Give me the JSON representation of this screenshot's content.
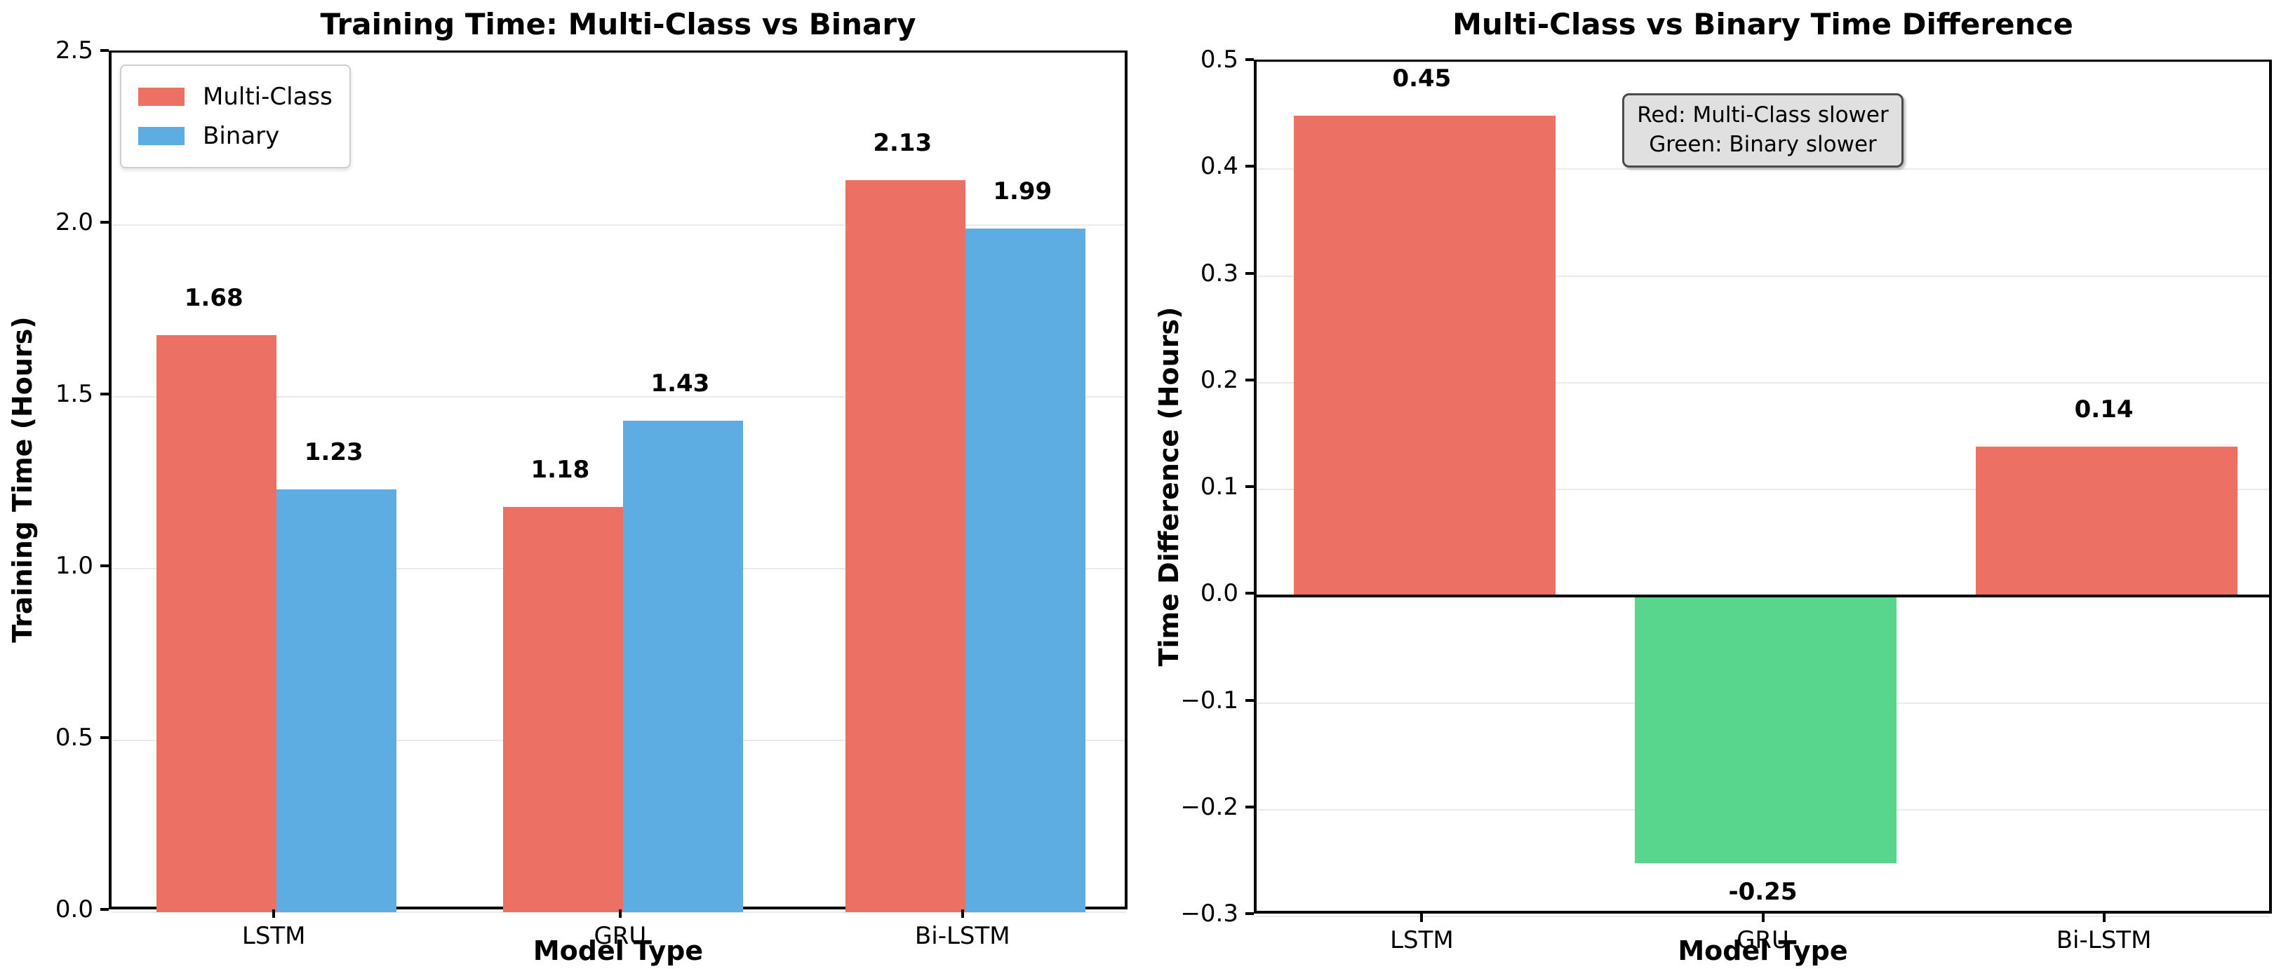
{
  "figure": {
    "background": "#ffffff"
  },
  "colors": {
    "multi_class": "#EC7063",
    "binary": "#5DADE2",
    "binary_slower": "#58D68D",
    "gridline": "#ebebeb",
    "annotation_bg": "#e0e0e0",
    "annotation_border": "#4b4b4b"
  },
  "chart_data": [
    {
      "id": "training-time",
      "type": "bar",
      "title": "Training Time: Multi-Class vs Binary",
      "xlabel": "Model Type",
      "ylabel": "Training Time (Hours)",
      "categories": [
        "LSTM",
        "GRU",
        "Bi-LSTM"
      ],
      "series": [
        {
          "name": "Multi-Class",
          "color": "#EC7063",
          "values": [
            1.68,
            1.18,
            2.13
          ]
        },
        {
          "name": "Binary",
          "color": "#5DADE2",
          "values": [
            1.23,
            1.43,
            1.99
          ]
        }
      ],
      "bar_labels": [
        [
          "1.68",
          "1.18",
          "2.13"
        ],
        [
          "1.23",
          "1.43",
          "1.99"
        ]
      ],
      "ylim": [
        0,
        2.5
      ],
      "yticks": [
        0.0,
        0.5,
        1.0,
        1.5,
        2.0,
        2.5
      ],
      "ytick_labels": [
        "0.0",
        "0.5",
        "1.0",
        "1.5",
        "2.0",
        "2.5"
      ],
      "grid": true,
      "legend_position": "upper-left"
    },
    {
      "id": "time-difference",
      "type": "bar",
      "title": "Multi-Class vs Binary Time Difference",
      "xlabel": "Model Type",
      "ylabel": "Time Difference (Hours)",
      "categories": [
        "LSTM",
        "GRU",
        "Bi-LSTM"
      ],
      "values": [
        0.45,
        -0.25,
        0.14
      ],
      "bar_labels": [
        "0.45",
        "-0.25",
        "0.14"
      ],
      "bar_colors": [
        "#EC7063",
        "#58D68D",
        "#EC7063"
      ],
      "ylim": [
        -0.3,
        0.5
      ],
      "yticks": [
        0.5,
        0.4,
        0.3,
        0.2,
        0.1,
        0.0,
        -0.1,
        -0.2,
        -0.3
      ],
      "ytick_labels": [
        "0.5",
        "0.4",
        "0.3",
        "0.2",
        "0.1",
        "0.0",
        "−0.1",
        "−0.2",
        "−0.3"
      ],
      "zero_line": true,
      "grid": true,
      "annotation": {
        "lines": [
          "Red: Multi-Class slower",
          "Green: Binary slower"
        ]
      }
    }
  ]
}
